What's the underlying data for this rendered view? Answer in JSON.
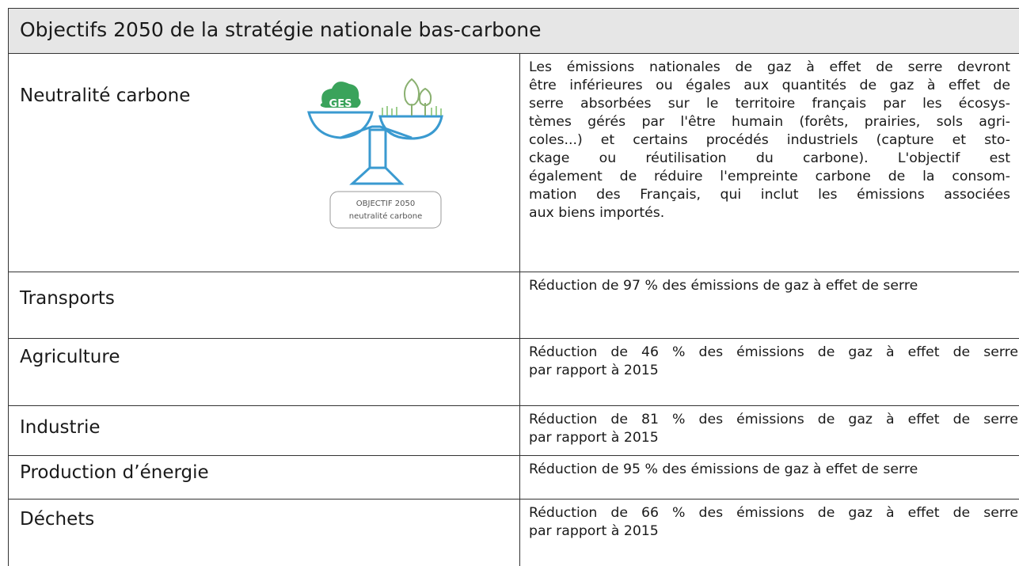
{
  "header": {
    "title": "Objectifs 2050 de la stratégie nationale bas-carbone"
  },
  "icon": {
    "cloud_label": "GES",
    "badge_line1": "OBJECTIF 2050",
    "badge_line2": "neutralité carbone"
  },
  "table": {
    "rows": [
      {
        "name": "Neutralité carbone",
        "description": [
          "Les émissions nationales de gaz à effet de serre devront",
          "être inférieures ou égales aux quantités de gaz à effet de",
          "serre absorbées sur le territoire français par les écosys-",
          "tèmes gérés par l'être humain (forêts, prairies, sols agri-",
          "coles...) et certains procédés industriels (capture et sto-",
          "ckage ou réutilisation du carbone). L'objectif est",
          "également de réduire l'empreinte carbone de la consom-",
          "mation des Français, qui inclut les émissions associées",
          "aux biens importés."
        ]
      },
      {
        "name": "Transports",
        "description": [
          "Réduction de 97 % des émissions de gaz à effet de serre"
        ]
      },
      {
        "name": "Agriculture",
        "description": [
          "Réduction de 46 % des émissions de gaz à effet de serre",
          "par rapport à 2015"
        ]
      },
      {
        "name": "Industrie",
        "description": [
          "Réduction de 81 % des émissions de gaz à effet de serre",
          "par rapport à 2015"
        ]
      },
      {
        "name": "Production d’énergie",
        "description": [
          "Réduction de 95 % des émissions de gaz à effet de serre"
        ]
      },
      {
        "name": "Déchets",
        "description": [
          "Réduction de 66 % des émissions de gaz à effet de serre",
          "par rapport à 2015"
        ]
      }
    ]
  }
}
